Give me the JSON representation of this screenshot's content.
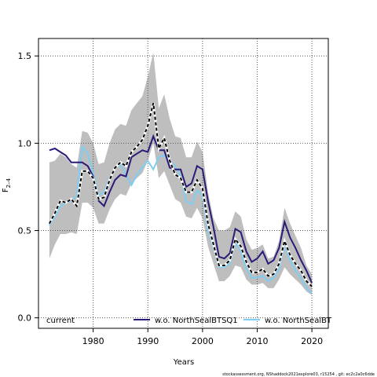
{
  "chart_data": {
    "type": "line",
    "xlabel": "Years",
    "ylabel_main": "F",
    "ylabel_sub": "2–4",
    "xlim": [
      1970,
      2023
    ],
    "ylim": [
      -0.06,
      1.6
    ],
    "xticks": [
      1980,
      1990,
      2000,
      2010,
      2020
    ],
    "yticks": [
      0.0,
      0.5,
      1.0,
      1.5
    ],
    "ytick_labels": [
      "0.0",
      "0.5",
      "1.0",
      "1.5"
    ],
    "grid": true,
    "legend_position": "bottom",
    "x": [
      1972,
      1973,
      1974,
      1975,
      1976,
      1977,
      1978,
      1979,
      1980,
      1981,
      1982,
      1983,
      1984,
      1985,
      1986,
      1987,
      1988,
      1989,
      1990,
      1991,
      1992,
      1993,
      1994,
      1995,
      1996,
      1997,
      1998,
      1999,
      2000,
      2001,
      2002,
      2003,
      2004,
      2005,
      2006,
      2007,
      2008,
      2009,
      2010,
      2011,
      2012,
      2013,
      2014,
      2015,
      2016,
      2017,
      2018,
      2019,
      2020
    ],
    "band": {
      "upper": [
        0.89,
        0.9,
        0.94,
        0.92,
        0.88,
        0.86,
        1.07,
        1.06,
        1.0,
        0.88,
        0.89,
        1.0,
        1.08,
        1.11,
        1.1,
        1.19,
        1.23,
        1.27,
        1.38,
        1.52,
        1.2,
        1.28,
        1.14,
        1.04,
        1.03,
        0.92,
        0.92,
        1.01,
        0.95,
        0.72,
        0.57,
        0.5,
        0.5,
        0.52,
        0.61,
        0.58,
        0.45,
        0.39,
        0.4,
        0.42,
        0.34,
        0.35,
        0.44,
        0.63,
        0.54,
        0.47,
        0.4,
        0.3,
        0.25
      ],
      "lower": [
        0.34,
        0.42,
        0.48,
        0.48,
        0.49,
        0.48,
        0.66,
        0.66,
        0.63,
        0.54,
        0.54,
        0.62,
        0.68,
        0.71,
        0.7,
        0.77,
        0.8,
        0.83,
        0.9,
        1.0,
        0.8,
        0.84,
        0.76,
        0.68,
        0.66,
        0.58,
        0.57,
        0.63,
        0.57,
        0.41,
        0.31,
        0.21,
        0.21,
        0.24,
        0.3,
        0.29,
        0.22,
        0.19,
        0.19,
        0.2,
        0.17,
        0.17,
        0.22,
        0.29,
        0.25,
        0.22,
        0.19,
        0.15,
        0.13
      ]
    },
    "series": [
      {
        "name": "current",
        "color": "#000000",
        "style": "dashed-on-white",
        "values": [
          0.54,
          0.6,
          0.67,
          0.66,
          0.68,
          0.64,
          0.84,
          0.84,
          0.8,
          0.68,
          0.69,
          0.79,
          0.86,
          0.89,
          0.87,
          0.95,
          0.98,
          1.02,
          1.1,
          1.23,
          0.97,
          1.03,
          0.9,
          0.82,
          0.8,
          0.72,
          0.72,
          0.79,
          0.74,
          0.54,
          0.42,
          0.3,
          0.3,
          0.33,
          0.45,
          0.41,
          0.32,
          0.26,
          0.26,
          0.28,
          0.24,
          0.25,
          0.31,
          0.44,
          0.36,
          0.31,
          0.27,
          0.21,
          0.18
        ]
      },
      {
        "name": "w.o. NorthSealBTSQ1",
        "color": "#2c1a78",
        "style": "solid",
        "values": [
          0.96,
          0.97,
          0.95,
          0.93,
          0.89,
          0.89,
          0.89,
          0.87,
          0.81,
          0.67,
          0.64,
          0.72,
          0.79,
          0.82,
          0.81,
          0.92,
          0.94,
          0.96,
          0.95,
          1.04,
          0.96,
          0.96,
          0.86,
          0.85,
          0.85,
          0.75,
          0.77,
          0.87,
          0.85,
          0.67,
          0.52,
          0.35,
          0.34,
          0.37,
          0.51,
          0.49,
          0.38,
          0.32,
          0.34,
          0.38,
          0.31,
          0.33,
          0.4,
          0.55,
          0.46,
          0.4,
          0.33,
          0.27,
          0.2
        ]
      },
      {
        "name": "w.o. NorthSealBT",
        "color": "#7ecef4",
        "style": "solid",
        "values": [
          0.53,
          0.58,
          0.64,
          0.66,
          0.67,
          0.7,
          0.98,
          0.94,
          0.83,
          0.7,
          0.72,
          0.8,
          0.86,
          0.88,
          0.82,
          0.76,
          0.82,
          0.86,
          0.9,
          0.85,
          0.92,
          0.93,
          0.9,
          0.87,
          0.81,
          0.67,
          0.65,
          0.73,
          0.7,
          0.5,
          0.4,
          0.29,
          0.29,
          0.31,
          0.43,
          0.38,
          0.28,
          0.23,
          0.23,
          0.24,
          0.21,
          0.23,
          0.28,
          0.42,
          0.33,
          0.27,
          0.23,
          0.17,
          0.14
        ]
      }
    ],
    "legend": [
      {
        "label": "current"
      },
      {
        "label": "w.o. NorthSealBTSQ1"
      },
      {
        "label": "w.o. NorthSealBT"
      }
    ]
  },
  "footer": "stockassessment.org, NShaddock2021explore03, r15254 ,  git:  ec2c2a0c6dde",
  "colors": {
    "band": "#bebebe",
    "grid": "#555555",
    "axis": "#000000"
  }
}
